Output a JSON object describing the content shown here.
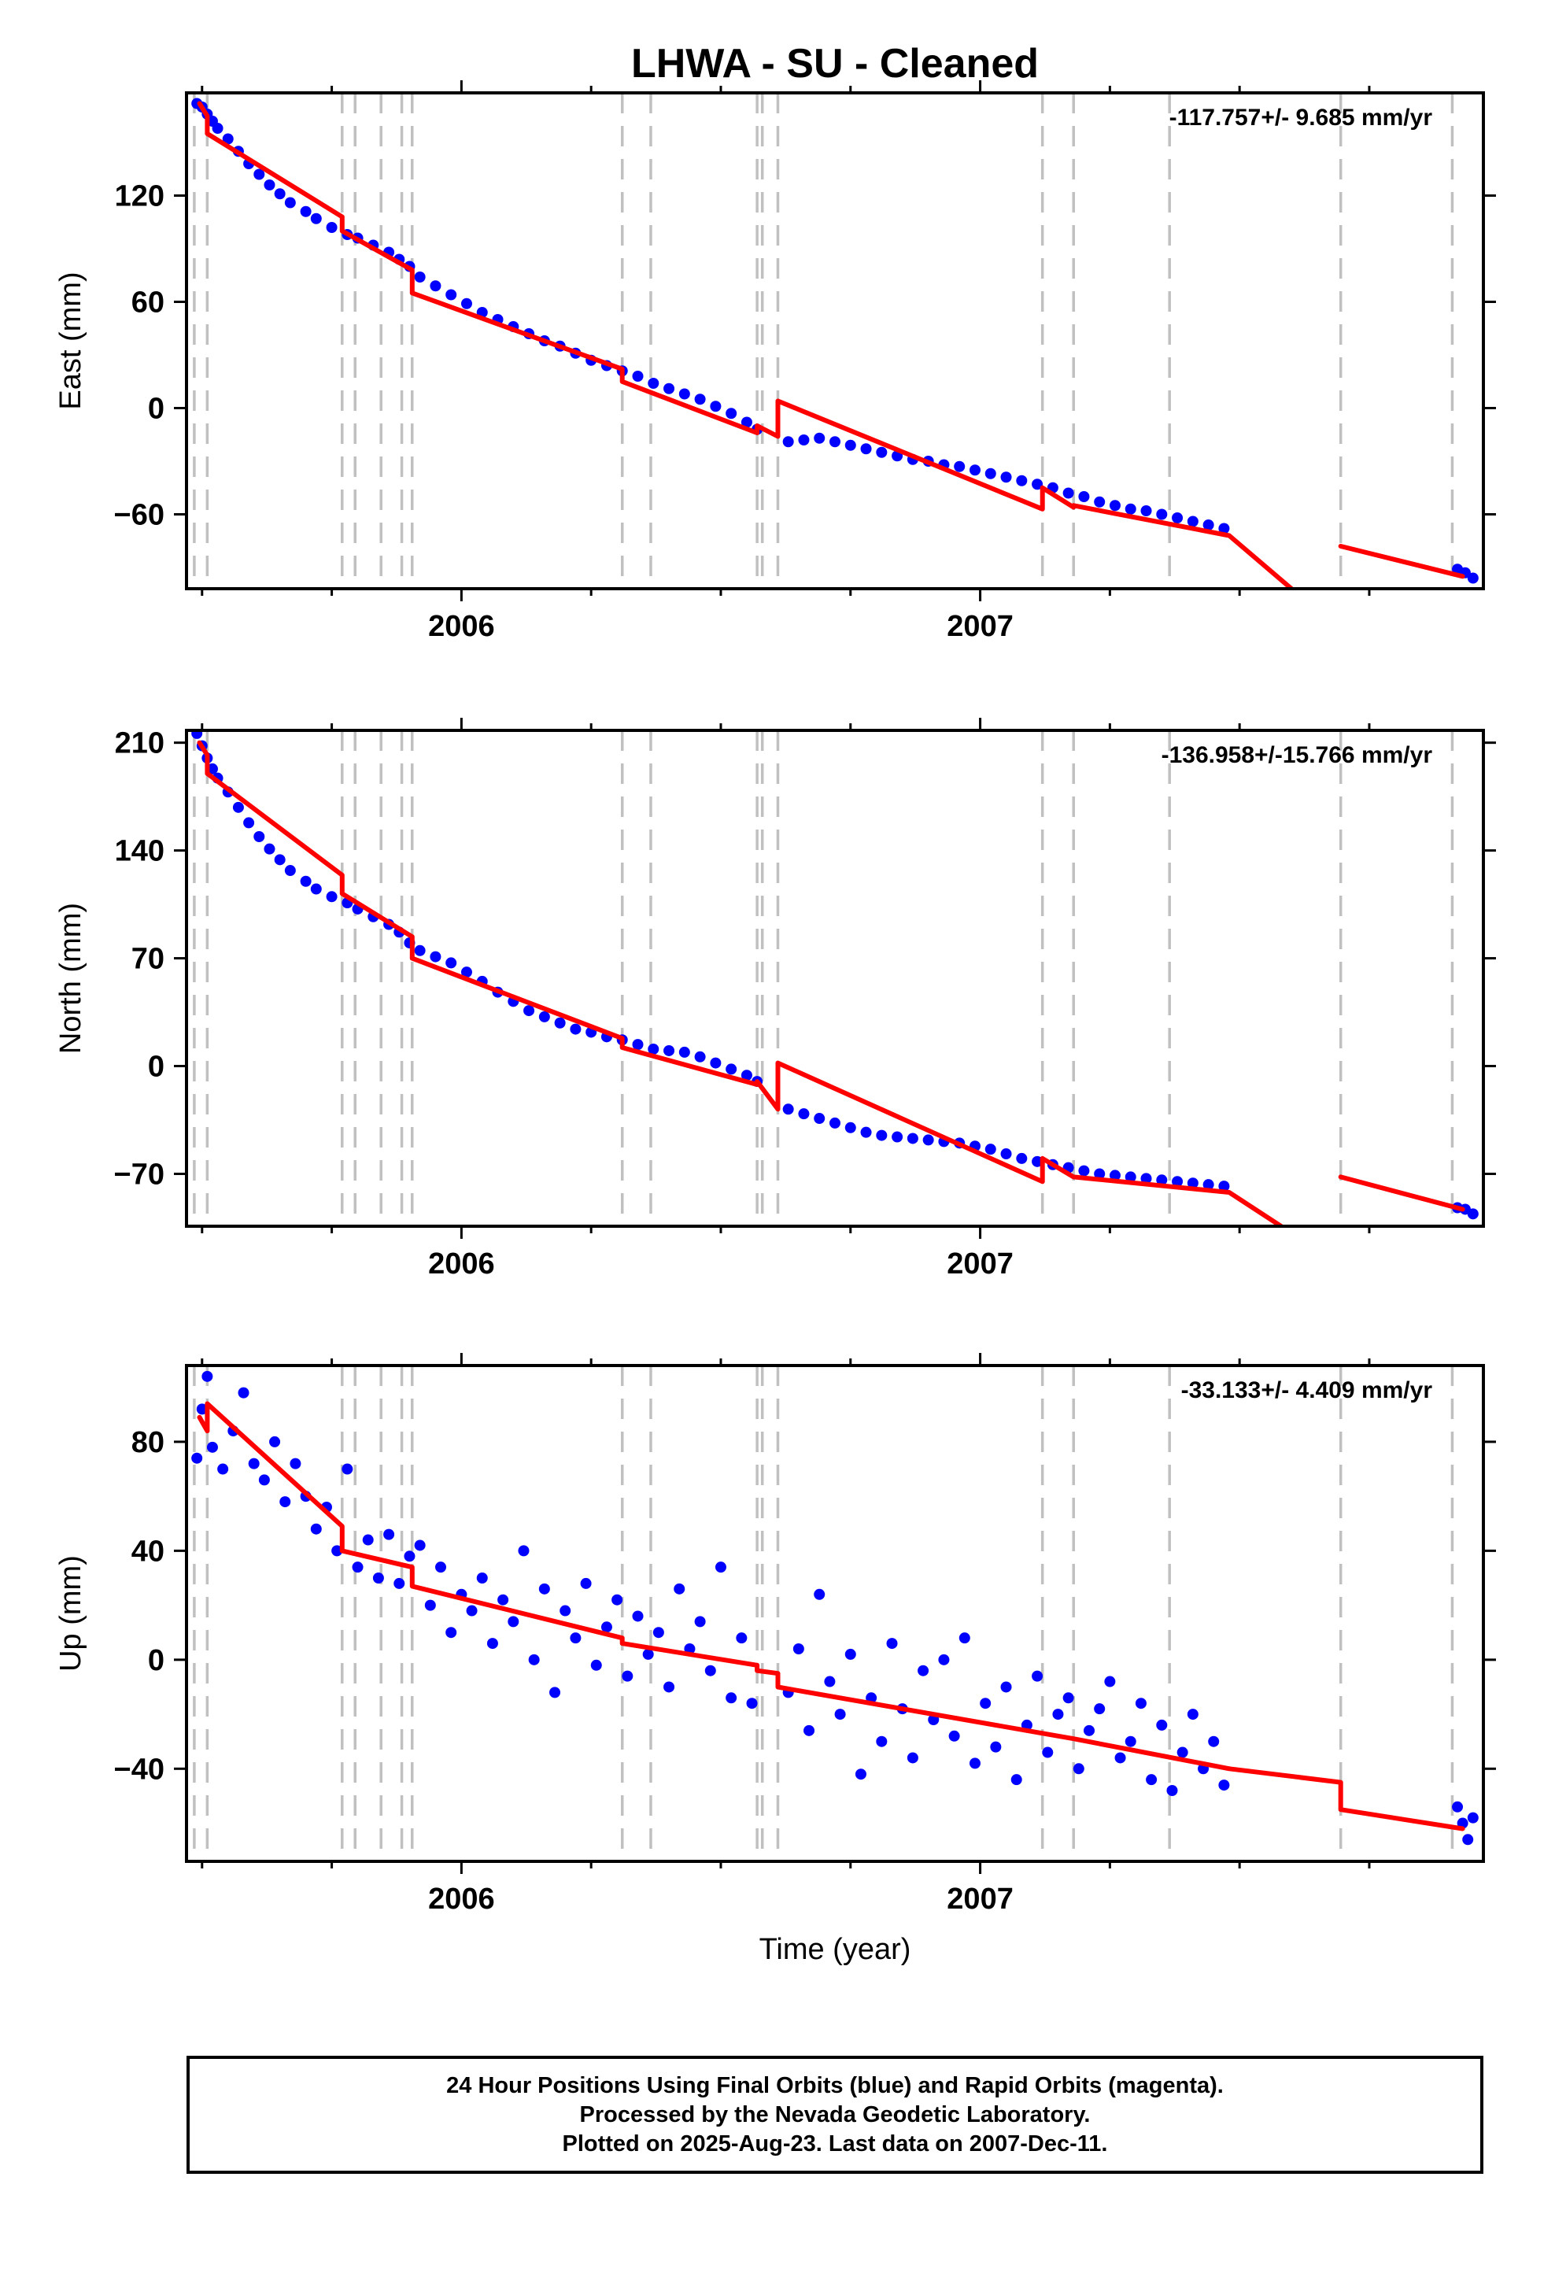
{
  "colors": {
    "final_orbits": "#0000ff",
    "model": "#ff0000",
    "offsets": "#c0c0c0",
    "axes": "#000000"
  },
  "chart_data": [
    {
      "type": "scatter",
      "panel": "east",
      "title": "LHWA  - SU - Cleaned",
      "xlabel": "",
      "ylabel": "East (mm)",
      "annotation": "-117.757+/- 9.685 mm/yr",
      "xlim": [
        2005.47,
        2007.97
      ],
      "ylim": [
        -102,
        178
      ],
      "xticks": [
        2006,
        2007
      ],
      "xtick_labels": [
        "2006",
        "2007"
      ],
      "yticks": [
        120,
        60,
        0,
        -60
      ],
      "ytick_labels": [
        "120",
        "60",
        "0",
        "−60"
      ],
      "rate_mm_per_yr": -117.757,
      "rate_sigma_mm_per_yr": 9.685,
      "offset_epochs": [
        2005.485,
        2005.51,
        2005.77,
        2005.795,
        2005.845,
        2005.885,
        2005.905,
        2006.31,
        2006.365,
        2006.57,
        2006.58,
        2006.61,
        2007.12,
        2007.18,
        2007.365,
        2007.695,
        2007.91,
        2007.97
      ],
      "model_segments": [
        {
          "x": [
            2005.495,
            2005.51
          ],
          "y": [
            172,
            165
          ]
        },
        {
          "x": [
            2005.51,
            2005.77
          ],
          "y": [
            155,
            108
          ]
        },
        {
          "x": [
            2005.77,
            2005.905
          ],
          "y": [
            100,
            78
          ]
        },
        {
          "x": [
            2005.905,
            2006.31
          ],
          "y": [
            65,
            22
          ]
        },
        {
          "x": [
            2006.31,
            2006.57
          ],
          "y": [
            15,
            -14
          ]
        },
        {
          "x": [
            2006.57,
            2006.61
          ],
          "y": [
            -10,
            -16
          ]
        },
        {
          "x": [
            2006.61,
            2007.12
          ],
          "y": [
            4,
            -57
          ]
        },
        {
          "x": [
            2007.12,
            2007.18
          ],
          "y": [
            -45,
            -56
          ]
        },
        {
          "x": [
            2007.18,
            2007.48
          ],
          "y": [
            -55,
            -72
          ]
        },
        {
          "x": [
            2007.48,
            2007.6
          ],
          "y": [
            -72,
            -102
          ]
        },
        {
          "x": [
            2007.695,
            2007.93
          ],
          "y": [
            -78,
            -95
          ]
        }
      ],
      "data_series": [
        {
          "x": [
            2005.49,
            2005.5,
            2005.51,
            2005.52,
            2005.53,
            2005.55,
            2005.57,
            2005.59,
            2005.61,
            2005.63,
            2005.65,
            2005.67,
            2005.7,
            2005.72,
            2005.75,
            2005.78,
            2005.8,
            2005.83,
            2005.86,
            2005.88,
            2005.9,
            2005.92,
            2005.95,
            2005.98,
            2006.01,
            2006.04,
            2006.07,
            2006.1,
            2006.13,
            2006.16,
            2006.19,
            2006.22,
            2006.25,
            2006.28,
            2006.31,
            2006.34,
            2006.37,
            2006.4,
            2006.43,
            2006.46,
            2006.49,
            2006.52,
            2006.55,
            2006.57
          ],
          "y": [
            172,
            170,
            166,
            162,
            158,
            152,
            145,
            138,
            132,
            126,
            121,
            116,
            111,
            107,
            102,
            98,
            96,
            92,
            88,
            84,
            80,
            74,
            69,
            64,
            59,
            54,
            50,
            46,
            42,
            38,
            35,
            31,
            27,
            24,
            21,
            18,
            14,
            11,
            8,
            5,
            1,
            -3,
            -8,
            -12
          ]
        },
        {
          "x": [
            2006.63,
            2006.66,
            2006.69,
            2006.72,
            2006.75,
            2006.78,
            2006.81,
            2006.84,
            2006.87,
            2006.9,
            2006.93,
            2006.96,
            2006.99,
            2007.02,
            2007.05,
            2007.08,
            2007.11,
            2007.14,
            2007.17,
            2007.2,
            2007.23,
            2007.26,
            2007.29,
            2007.32,
            2007.35,
            2007.38,
            2007.41,
            2007.44,
            2007.47
          ],
          "y": [
            -19,
            -18,
            -17,
            -19,
            -21,
            -23,
            -25,
            -27,
            -29,
            -30,
            -32,
            -33,
            -35,
            -37,
            -39,
            -41,
            -43,
            -45,
            -48,
            -50,
            -53,
            -55,
            -57,
            -58,
            -60,
            -62,
            -64,
            -66,
            -68
          ]
        },
        {
          "x": [
            2007.92,
            2007.935,
            2007.95
          ],
          "y": [
            -91,
            -93,
            -96
          ]
        }
      ]
    },
    {
      "type": "scatter",
      "panel": "north",
      "xlabel": "",
      "ylabel": "North (mm)",
      "annotation": "-136.958+/-15.766 mm/yr",
      "xlim": [
        2005.47,
        2007.97
      ],
      "ylim": [
        -104,
        218
      ],
      "xticks": [
        2006,
        2007
      ],
      "xtick_labels": [
        "2006",
        "2007"
      ],
      "yticks": [
        210,
        140,
        70,
        0,
        -70
      ],
      "ytick_labels": [
        "210",
        "140",
        "70",
        "0",
        "−70"
      ],
      "rate_mm_per_yr": -136.958,
      "rate_sigma_mm_per_yr": 15.766,
      "offset_epochs": [
        2005.485,
        2005.51,
        2005.77,
        2005.795,
        2005.845,
        2005.885,
        2005.905,
        2006.31,
        2006.365,
        2006.57,
        2006.58,
        2006.61,
        2007.12,
        2007.18,
        2007.365,
        2007.695,
        2007.91,
        2007.97
      ],
      "model_segments": [
        {
          "x": [
            2005.495,
            2005.51
          ],
          "y": [
            210,
            202
          ]
        },
        {
          "x": [
            2005.51,
            2005.77
          ],
          "y": [
            190,
            124
          ]
        },
        {
          "x": [
            2005.77,
            2005.905
          ],
          "y": [
            112,
            84
          ]
        },
        {
          "x": [
            2005.905,
            2006.31
          ],
          "y": [
            70,
            18
          ]
        },
        {
          "x": [
            2006.31,
            2006.57
          ],
          "y": [
            12,
            -12
          ]
        },
        {
          "x": [
            2006.57,
            2006.61
          ],
          "y": [
            -10,
            -28
          ]
        },
        {
          "x": [
            2006.61,
            2007.12
          ],
          "y": [
            2,
            -75
          ]
        },
        {
          "x": [
            2007.12,
            2007.18
          ],
          "y": [
            -60,
            -72
          ]
        },
        {
          "x": [
            2007.18,
            2007.48
          ],
          "y": [
            -72,
            -82
          ]
        },
        {
          "x": [
            2007.48,
            2007.58
          ],
          "y": [
            -82,
            -104
          ]
        },
        {
          "x": [
            2007.695,
            2007.93
          ],
          "y": [
            -72,
            -93
          ]
        }
      ],
      "data_series": [
        {
          "x": [
            2005.49,
            2005.5,
            2005.51,
            2005.52,
            2005.53,
            2005.55,
            2005.57,
            2005.59,
            2005.61,
            2005.63,
            2005.65,
            2005.67,
            2005.7,
            2005.72,
            2005.75,
            2005.78,
            2005.8,
            2005.83,
            2005.86,
            2005.88,
            2005.9,
            2005.92,
            2005.95,
            2005.98,
            2006.01,
            2006.04,
            2006.07,
            2006.1,
            2006.13,
            2006.16,
            2006.19,
            2006.22,
            2006.25,
            2006.28,
            2006.31,
            2006.34,
            2006.37,
            2006.4,
            2006.43,
            2006.46,
            2006.49,
            2006.52,
            2006.55,
            2006.57
          ],
          "y": [
            216,
            208,
            200,
            193,
            187,
            178,
            168,
            158,
            149,
            141,
            134,
            127,
            120,
            115,
            110,
            106,
            102,
            97,
            92,
            87,
            80,
            75,
            71,
            67,
            61,
            55,
            48,
            42,
            36,
            32,
            28,
            24,
            22,
            19,
            17,
            14,
            11,
            10,
            9,
            6,
            2,
            -2,
            -6,
            -10
          ]
        },
        {
          "x": [
            2006.63,
            2006.66,
            2006.69,
            2006.72,
            2006.75,
            2006.78,
            2006.81,
            2006.84,
            2006.87,
            2006.9,
            2006.93,
            2006.96,
            2006.99,
            2007.02,
            2007.05,
            2007.08,
            2007.11,
            2007.14,
            2007.17,
            2007.2,
            2007.23,
            2007.26,
            2007.29,
            2007.32,
            2007.35,
            2007.38,
            2007.41,
            2007.44,
            2007.47
          ],
          "y": [
            -28,
            -31,
            -34,
            -37,
            -40,
            -43,
            -45,
            -46,
            -47,
            -48,
            -49,
            -50,
            -52,
            -54,
            -57,
            -60,
            -62,
            -64,
            -66,
            -68,
            -70,
            -71,
            -72,
            -73,
            -74,
            -75,
            -76,
            -77,
            -78
          ]
        },
        {
          "x": [
            2007.92,
            2007.935,
            2007.95
          ],
          "y": [
            -92,
            -93,
            -96
          ]
        }
      ]
    },
    {
      "type": "scatter",
      "panel": "up",
      "xlabel": "Time (year)",
      "ylabel": "Up (mm)",
      "annotation": "-33.133+/- 4.409 mm/yr",
      "xlim": [
        2005.47,
        2007.97
      ],
      "ylim": [
        -74,
        108
      ],
      "xticks": [
        2006,
        2007
      ],
      "xtick_labels": [
        "2006",
        "2007"
      ],
      "yticks": [
        80,
        40,
        0,
        -40
      ],
      "ytick_labels": [
        "80",
        "40",
        "0",
        "−40"
      ],
      "rate_mm_per_yr": -33.133,
      "rate_sigma_mm_per_yr": 4.409,
      "offset_epochs": [
        2005.485,
        2005.51,
        2005.77,
        2005.795,
        2005.845,
        2005.885,
        2005.905,
        2006.31,
        2006.365,
        2006.57,
        2006.58,
        2006.61,
        2007.12,
        2007.18,
        2007.365,
        2007.695,
        2007.91,
        2007.97
      ],
      "model_segments": [
        {
          "x": [
            2005.495,
            2005.51
          ],
          "y": [
            89,
            84
          ]
        },
        {
          "x": [
            2005.51,
            2005.77
          ],
          "y": [
            94,
            49
          ]
        },
        {
          "x": [
            2005.77,
            2005.905
          ],
          "y": [
            40,
            34
          ]
        },
        {
          "x": [
            2005.905,
            2006.31
          ],
          "y": [
            27,
            8
          ]
        },
        {
          "x": [
            2006.31,
            2006.57
          ],
          "y": [
            6,
            -2
          ]
        },
        {
          "x": [
            2006.57,
            2006.61
          ],
          "y": [
            -4,
            -5
          ]
        },
        {
          "x": [
            2006.61,
            2007.12
          ],
          "y": [
            -10,
            -27
          ]
        },
        {
          "x": [
            2007.12,
            2007.18
          ],
          "y": [
            -27,
            -29
          ]
        },
        {
          "x": [
            2007.18,
            2007.48
          ],
          "y": [
            -29,
            -40
          ]
        },
        {
          "x": [
            2007.48,
            2007.695
          ],
          "y": [
            -40,
            -45
          ]
        },
        {
          "x": [
            2007.695,
            2007.93
          ],
          "y": [
            -55,
            -62
          ]
        }
      ],
      "data_series": [
        {
          "x": [
            2005.49,
            2005.5,
            2005.51,
            2005.52,
            2005.54,
            2005.56,
            2005.58,
            2005.6,
            2005.62,
            2005.64,
            2005.66,
            2005.68,
            2005.7,
            2005.72,
            2005.74,
            2005.76,
            2005.78,
            2005.8,
            2005.82,
            2005.84,
            2005.86,
            2005.88,
            2005.9,
            2005.92,
            2005.94,
            2005.96,
            2005.98,
            2006.0,
            2006.02,
            2006.04,
            2006.06,
            2006.08,
            2006.1,
            2006.12,
            2006.14,
            2006.16,
            2006.18,
            2006.2,
            2006.22,
            2006.24,
            2006.26,
            2006.28,
            2006.3,
            2006.32,
            2006.34,
            2006.36,
            2006.38,
            2006.4,
            2006.42,
            2006.44,
            2006.46,
            2006.48,
            2006.5,
            2006.52,
            2006.54,
            2006.56
          ],
          "y": [
            74,
            92,
            104,
            78,
            70,
            84,
            98,
            72,
            66,
            80,
            58,
            72,
            60,
            48,
            56,
            40,
            70,
            34,
            44,
            30,
            46,
            28,
            38,
            42,
            20,
            34,
            10,
            24,
            18,
            30,
            6,
            22,
            14,
            40,
            0,
            26,
            -12,
            18,
            8,
            28,
            -2,
            12,
            22,
            -6,
            16,
            2,
            10,
            -10,
            26,
            4,
            14,
            -4,
            34,
            -14,
            8,
            -16
          ]
        },
        {
          "x": [
            2006.63,
            2006.65,
            2006.67,
            2006.69,
            2006.71,
            2006.73,
            2006.75,
            2006.77,
            2006.79,
            2006.81,
            2006.83,
            2006.85,
            2006.87,
            2006.89,
            2006.91,
            2006.93,
            2006.95,
            2006.97,
            2006.99,
            2007.01,
            2007.03,
            2007.05,
            2007.07,
            2007.09,
            2007.11,
            2007.13,
            2007.15,
            2007.17,
            2007.19,
            2007.21,
            2007.23,
            2007.25,
            2007.27,
            2007.29,
            2007.31,
            2007.33,
            2007.35,
            2007.37,
            2007.39,
            2007.41,
            2007.43,
            2007.45,
            2007.47
          ],
          "y": [
            -12,
            4,
            -26,
            24,
            -8,
            -20,
            2,
            -42,
            -14,
            -30,
            6,
            -18,
            -36,
            -4,
            -22,
            0,
            -28,
            8,
            -38,
            -16,
            -32,
            -10,
            -44,
            -24,
            -6,
            -34,
            -20,
            -14,
            -40,
            -26,
            -18,
            -8,
            -36,
            -30,
            -16,
            -44,
            -24,
            -48,
            -34,
            -20,
            -40,
            -30,
            -46
          ]
        },
        {
          "x": [
            2007.92,
            2007.93,
            2007.94,
            2007.95
          ],
          "y": [
            -54,
            -60,
            -66,
            -58
          ]
        }
      ]
    }
  ],
  "footer": {
    "line1": "24 Hour Positions Using Final Orbits (blue) and Rapid Orbits (magenta).",
    "line2": "Processed by the Nevada Geodetic Laboratory.",
    "line3": "Plotted on 2025-Aug-23. Last data on 2007-Dec-11."
  }
}
